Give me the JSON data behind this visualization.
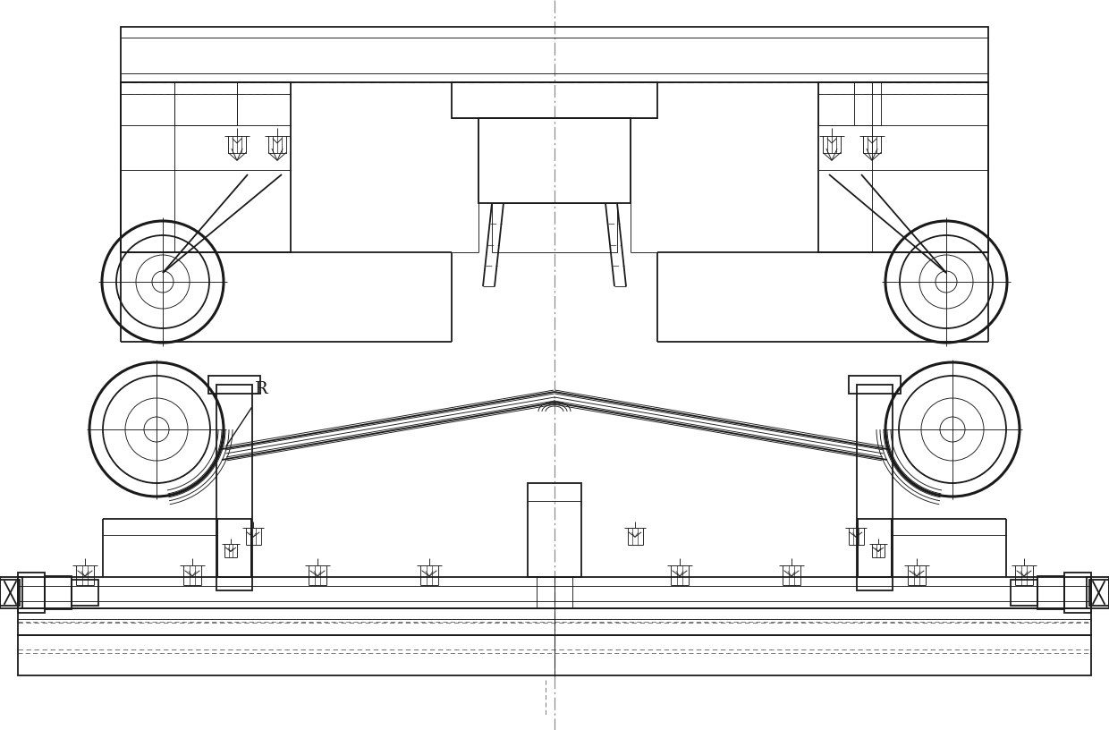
{
  "bg_color": "#ffffff",
  "line_color": "#1a1a1a",
  "dashed_color": "#666666",
  "center_line_color": "#888888",
  "fig_width": 12.4,
  "fig_height": 8.16,
  "annotation_R": "R",
  "lw_main": 1.3,
  "lw_thin": 0.65,
  "lw_thick": 2.2,
  "lw_medium": 1.0
}
